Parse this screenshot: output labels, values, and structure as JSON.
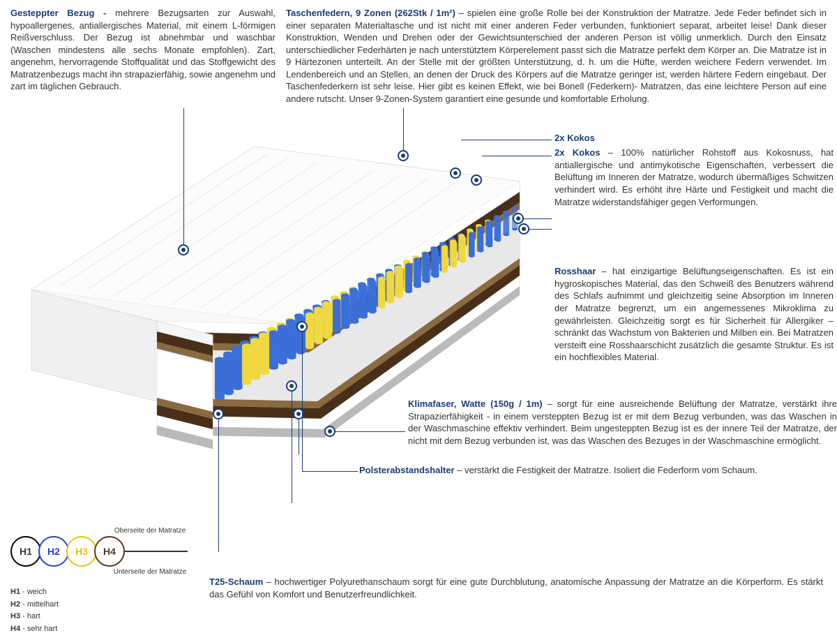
{
  "colors": {
    "title": "#1a3b7a",
    "text": "#333333",
    "h1": "#000000",
    "h2": "#2244cc",
    "h3": "#e8c800",
    "h4": "#5a3820",
    "spring_blue": "#3a6fd8",
    "spring_yellow": "#f0d840",
    "kokos": "#4a2f18",
    "foam_white": "#f5f5f5",
    "foam_gray": "#d8d8d8",
    "base_gray": "#bababa"
  },
  "top_left": {
    "title": "Gesteppter Bezug - ",
    "text": "mehrere Bezugsarten zur Auswahl, hypoallergenes, antiallergisches Material, mit einem L-förmigen Reißverschluss. Der Bezug ist abnehmbar und waschbar (Waschen mindestens alle sechs Monate empfohlen). Zart, angenehm, hervorragende Stoffqualität und das Stoffgewicht des Matratzenbezugs macht ihn strapazierfähig, sowie angenehm und zart im täglichen Gebrauch."
  },
  "top_right": {
    "title": "Taschenfedern, 9 Zonen (262Stk / 1m²)",
    "text": " – spielen eine große Rolle bei der Konstruktion der Matratze. Jede Feder befindet sich in einer separaten Materialtasche und ist nicht mit einer anderen Feder verbunden, funktioniert separat, arbeitet leise! Dank dieser Konstruktion, Wenden und Drehen oder der Gewichtsunterschied der anderen Person ist völlig unmerklich. Durch den Einsatz unterschiedlicher Federhärten je nach unterstütztem Körperelement passt sich die Matratze perfekt dem Körper an. Die Matratze ist in 9 Härtezonen unterteilt. An der Stelle mit der größten Unterstützung, d. h. um die Hüfte, werden weichere Federn verwendet. Im Lendenbereich und an Stellen, an denen der Druck des Körpers auf die Matratze geringer ist, werden härtere Federn eingebaut. Der Taschenfederkern ist sehr leise. Hier gibt es keinen Effekt, wie bei Bonell (Federkern)- Matratzen, das eine leichtere Person auf eine andere rutscht. Unser 9-Zonen-System garantiert eine gesunde und komfortable Erholung."
  },
  "kokos_header": "2x Kokos",
  "kokos": {
    "title": "2x Kokos",
    "text": " – 100% natürlicher Rohstoff aus Kokosnuss, hat antiallergische und antimykotische Eigenschaften, verbessert die Belüftung im Inneren der Matratze, wodurch übermäßiges Schwitzen verhindert wird. Es erhöht ihre Härte und Festigkeit und macht die Matratze widerstandsfähiger gegen Verformungen."
  },
  "rosshaar": {
    "title": "Rosshaar",
    "text": " – hat einzigartige Belüftungseigenschaften. Es ist ein hygroskopisches Material, das den Schweiß des Benutzers während des Schlafs aufnimmt und gleichzeitig seine Absorption im Inneren der Matratze begrenzt, um ein angemessenes Mikroklima zu gewährleisten. Gleichzeitig sorgt es für Sicherheit für Allergiker – schränkt das Wachstum von Bakterien und Milben ein. Bei Matratzen versteift eine Rosshaarschicht zusätzlich die gesamte Struktur. Es ist ein hochflexibles Material."
  },
  "klimafaser": {
    "title": "Klimafaser, Watte (150g / 1m)",
    "text": " – sorgt für eine ausreichende Belüftung der Matratze, verstärkt ihre Strapazierfähigkeit - in einem versteppten Bezug ist er mit dem Bezug verbunden, was das Waschen in der Waschmaschine effektiv verhindert. Beim ungesteppten Bezug ist es der innere Teil der Matratze, der nicht mit dem Bezug verbunden ist, was das Waschen des Bezuges in der Waschmaschine ermöglicht."
  },
  "polster": {
    "title": "Polsterabstandshalter",
    "text": " – verstärkt die Festigkeit der Matratze. Isoliert die Federform vom Schaum."
  },
  "t25": {
    "title": "T25-Schaum",
    "text": " – hochwertiger Polyurethanschaum sorgt für eine gute Durchblutung, anatomische Anpassung der Matratze an die Körperform. Es stärkt das Gefühl von Komfort und Benutzerfreundlichkeit."
  },
  "legend": {
    "top": "Oberseite der Matratze",
    "bottom": "Unterseite der Matratze",
    "h1": "H1",
    "h2": "H2",
    "h3": "H3",
    "h4": "H4",
    "d1": "H1 - weich",
    "d2": "H2 - mittelhart",
    "d3": "H3 - hart",
    "d4": "H4 - sehr hart"
  }
}
